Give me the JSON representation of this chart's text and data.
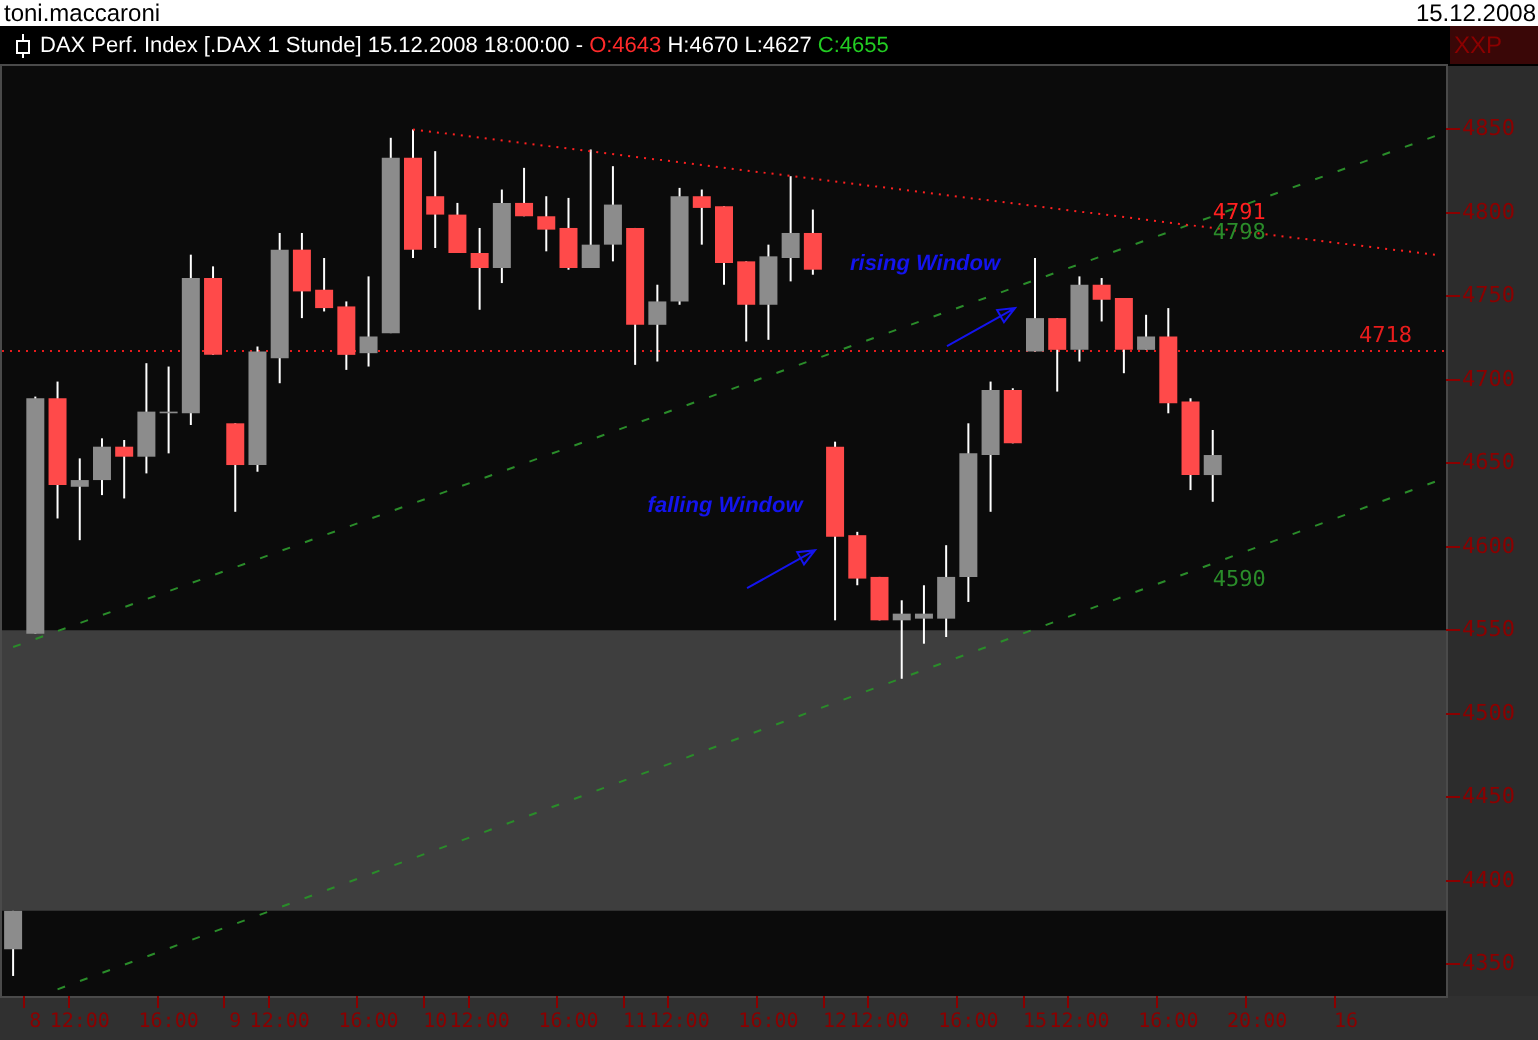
{
  "chart_data": {
    "type": "candlestick",
    "title": "DAX Perf. Index [.DAX 1 Stunde] 15.12.2008 18:00:00 - O:4643 H:4670 L:4627 C:4655",
    "categories": [
      null,
      "8",
      null,
      "12:00",
      null,
      null,
      null,
      "16:00",
      null,
      null,
      "9",
      null,
      "12:00",
      null,
      null,
      null,
      "16:00",
      null,
      null,
      "10",
      null,
      "12:00",
      null,
      null,
      null,
      "16:00",
      null,
      null,
      "11",
      null,
      "12:00",
      null,
      null,
      null,
      "16:00",
      null,
      null,
      "12",
      null,
      "12:00",
      null,
      null,
      null,
      "16:00",
      null,
      null,
      "15",
      null,
      "12:00",
      null,
      null,
      null,
      "16:00",
      null,
      null,
      null,
      "20:00",
      null,
      null,
      null,
      "16",
      null,
      null,
      null,
      null
    ],
    "ohlc": [
      [
        4359,
        4382,
        4343,
        4382
      ],
      [
        4548,
        4690,
        4548,
        4689
      ],
      [
        4689,
        4699,
        4617,
        4637
      ],
      [
        4636,
        4653,
        4604,
        4640
      ],
      [
        4640,
        4665,
        4631,
        4660
      ],
      [
        4660,
        4664,
        4629,
        4654
      ],
      [
        4654,
        4710,
        4644,
        4681
      ],
      [
        4680,
        4708,
        4656,
        4681
      ],
      [
        4680,
        4775,
        4673,
        4761
      ],
      [
        4761,
        4768,
        4715,
        4715
      ],
      [
        4674,
        4674,
        4621,
        4649
      ],
      [
        4649,
        4720,
        4645,
        4717
      ],
      [
        4713,
        4788,
        4698,
        4778
      ],
      [
        4778,
        4788,
        4737,
        4753
      ],
      [
        4754,
        4773,
        4741,
        4743
      ],
      [
        4744,
        4747,
        4706,
        4715
      ],
      [
        4716,
        4762,
        4708,
        4726
      ],
      [
        4728,
        4845,
        4728,
        4833
      ],
      [
        4833,
        4850,
        4773,
        4778
      ],
      [
        4810,
        4837,
        4779,
        4799
      ],
      [
        4799,
        4806,
        4776,
        4776
      ],
      [
        4776,
        4791,
        4742,
        4767
      ],
      [
        4767,
        4814,
        4758,
        4806
      ],
      [
        4806,
        4827,
        4798,
        4798
      ],
      [
        4798,
        4810,
        4777,
        4790
      ],
      [
        4791,
        4809,
        4766,
        4767
      ],
      [
        4767,
        4838,
        4767,
        4781
      ],
      [
        4781,
        4828,
        4771,
        4805
      ],
      [
        4791,
        4791,
        4709,
        4733
      ],
      [
        4733,
        4757,
        4711,
        4747
      ],
      [
        4747,
        4815,
        4745,
        4810
      ],
      [
        4810,
        4814,
        4781,
        4803
      ],
      [
        4804,
        4804,
        4757,
        4770
      ],
      [
        4771,
        4771,
        4723,
        4745
      ],
      [
        4745,
        4781,
        4724,
        4774
      ],
      [
        4773,
        4822,
        4759,
        4788
      ],
      [
        4788,
        4802,
        4763,
        4766
      ],
      [
        4660,
        4663,
        4556,
        4606
      ],
      [
        4607,
        4609,
        4577,
        4581
      ],
      [
        4582,
        4582,
        4556,
        4556
      ],
      [
        4556,
        4568,
        4521,
        4560
      ],
      [
        4557,
        4577,
        4542,
        4560
      ],
      [
        4557,
        4601,
        4546,
        4582
      ],
      [
        4582,
        4674,
        4567,
        4656
      ],
      [
        4655,
        4699,
        4621,
        4694
      ],
      [
        4694,
        4695,
        4662,
        4662
      ],
      [
        4717,
        4773,
        4717,
        4737
      ],
      [
        4737,
        4737,
        4693,
        4718
      ],
      [
        4718,
        4762,
        4711,
        4757
      ],
      [
        4757,
        4761,
        4735,
        4748
      ],
      [
        4749,
        4749,
        4704,
        4718
      ],
      [
        4718,
        4739,
        4718,
        4726
      ],
      [
        4726,
        4743,
        4680,
        4686
      ],
      [
        4687,
        4689,
        4634,
        4643
      ],
      [
        4643,
        4670,
        4627,
        4655
      ],
      null,
      null,
      null,
      null,
      null,
      null,
      null,
      null,
      null,
      null
    ],
    "color": "#ffffff",
    "colors": [
      "#8c8c8c",
      "#8c8c8c",
      "#ff4a4a",
      "#8c8c8c",
      "#8c8c8c",
      "#ff4a4a",
      "#8c8c8c",
      "#8c8c8c",
      "#8c8c8c",
      "#ff4a4a",
      "#ff4a4a",
      "#8c8c8c",
      "#8c8c8c",
      "#ff4a4a",
      "#ff4a4a",
      "#ff4a4a",
      "#8c8c8c",
      "#8c8c8c",
      "#ff4a4a",
      "#ff4a4a",
      "#ff4a4a",
      "#ff4a4a",
      "#8c8c8c",
      "#ff4a4a",
      "#ff4a4a",
      "#ff4a4a",
      "#8c8c8c",
      "#8c8c8c",
      "#ff4a4a",
      "#8c8c8c",
      "#8c8c8c",
      "#ff4a4a",
      "#ff4a4a",
      "#ff4a4a",
      "#8c8c8c",
      "#8c8c8c",
      "#ff4a4a",
      "#ff4a4a",
      "#ff4a4a",
      "#ff4a4a",
      "#8c8c8c",
      "#8c8c8c",
      "#8c8c8c",
      "#8c8c8c",
      "#8c8c8c",
      "#ff4a4a",
      "#8c8c8c",
      "#ff4a4a",
      "#8c8c8c",
      "#ff4a4a",
      "#ff4a4a",
      "#8c8c8c",
      "#ff4a4a",
      "#ff4a4a",
      "#8c8c8c",
      null,
      null,
      null,
      null,
      null,
      null,
      null,
      null,
      null,
      null
    ],
    "series": [
      {
        "type": "line",
        "color": "#ff2020",
        "line_style": "dotted",
        "values": [
          null,
          null,
          null,
          null,
          null,
          null,
          null,
          null,
          null,
          null,
          null,
          null,
          null,
          null,
          null,
          null,
          null,
          null,
          4850,
          null,
          null,
          null,
          null,
          null,
          null,
          null,
          null,
          null,
          null,
          null,
          null,
          null,
          null,
          null,
          null,
          null,
          null,
          null,
          null,
          null,
          null,
          null,
          null,
          null,
          null,
          null,
          null,
          null,
          null,
          null,
          null,
          null,
          null,
          null,
          4791,
          null,
          null,
          null,
          null,
          null,
          null,
          null,
          null,
          null,
          4775
        ],
        "value_labels": [
          null,
          null,
          null,
          null,
          null,
          null,
          null,
          null,
          null,
          null,
          null,
          null,
          null,
          null,
          null,
          null,
          null,
          null,
          null,
          null,
          null,
          null,
          null,
          null,
          null,
          null,
          null,
          null,
          null,
          null,
          null,
          null,
          null,
          null,
          null,
          null,
          null,
          null,
          null,
          null,
          null,
          null,
          null,
          null,
          null,
          null,
          null,
          null,
          null,
          null,
          null,
          null,
          null,
          null,
          "4791",
          null,
          null,
          null,
          null,
          null,
          null,
          null,
          null,
          null,
          null
        ]
      },
      {
        "type": "line",
        "color": "#2a8c2a",
        "line_style": "dashed",
        "values": [
          4540,
          null,
          null,
          null,
          null,
          null,
          null,
          null,
          null,
          null,
          null,
          null,
          null,
          null,
          null,
          null,
          null,
          null,
          null,
          null,
          null,
          null,
          null,
          null,
          null,
          null,
          null,
          null,
          null,
          null,
          null,
          null,
          null,
          null,
          null,
          null,
          null,
          null,
          null,
          null,
          null,
          null,
          null,
          null,
          null,
          null,
          null,
          null,
          null,
          null,
          null,
          null,
          null,
          null,
          4798,
          null,
          null,
          null,
          null,
          null,
          null,
          null,
          null,
          null,
          4846
        ],
        "value_labels": [
          null,
          null,
          null,
          null,
          null,
          null,
          null,
          null,
          null,
          null,
          null,
          null,
          null,
          null,
          null,
          null,
          null,
          null,
          null,
          null,
          null,
          null,
          null,
          null,
          null,
          null,
          null,
          null,
          null,
          null,
          null,
          null,
          null,
          null,
          null,
          null,
          null,
          null,
          null,
          null,
          null,
          null,
          null,
          null,
          null,
          null,
          null,
          null,
          null,
          null,
          null,
          null,
          null,
          null,
          "4798",
          null,
          null,
          null,
          null,
          null,
          null,
          null,
          null,
          null,
          null
        ]
      },
      {
        "type": "line",
        "color": "#2a8c2a",
        "line_style": "dashed",
        "values": [
          null,
          null,
          4335,
          null,
          null,
          null,
          null,
          null,
          null,
          null,
          null,
          null,
          null,
          null,
          null,
          null,
          null,
          null,
          null,
          null,
          null,
          null,
          null,
          null,
          null,
          null,
          null,
          null,
          null,
          null,
          null,
          null,
          null,
          null,
          null,
          null,
          null,
          null,
          null,
          null,
          null,
          null,
          null,
          null,
          null,
          null,
          null,
          null,
          null,
          null,
          null,
          null,
          null,
          null,
          4590,
          null,
          null,
          null,
          null,
          null,
          null,
          null,
          null,
          null,
          4639
        ],
        "value_labels": [
          null,
          null,
          null,
          null,
          null,
          null,
          null,
          null,
          null,
          null,
          null,
          null,
          null,
          null,
          null,
          null,
          null,
          null,
          null,
          null,
          null,
          null,
          null,
          null,
          null,
          null,
          null,
          null,
          null,
          null,
          null,
          null,
          null,
          null,
          null,
          null,
          null,
          null,
          null,
          null,
          null,
          null,
          null,
          null,
          null,
          null,
          null,
          null,
          null,
          null,
          null,
          null,
          null,
          null,
          "4590",
          null,
          null,
          null,
          null,
          null,
          null,
          null,
          null,
          null,
          null
        ]
      }
    ],
    "ylim": [
      4331,
      4888
    ],
    "yticks": [
      4350,
      4400,
      4450,
      4500,
      4550,
      4600,
      4650,
      4700,
      4750,
      4800,
      4850
    ],
    "ref_lines": [
      {
        "axis": "y",
        "value": 4718,
        "label": "4718",
        "color": "#e81c1c",
        "line_style": "dotted"
      }
    ],
    "bands": [
      {
        "axis": "y",
        "from": 4382,
        "to": 4550,
        "color": "#3e3e3e"
      }
    ],
    "annotations": [
      "toni.maccaroni",
      "15.12.2008",
      "XXP",
      {
        "text": "falling Window",
        "x": "12",
        "y": 4598
      },
      {
        "text": "rising Window",
        "x": "15",
        "y": 4743
      }
    ]
  }
}
